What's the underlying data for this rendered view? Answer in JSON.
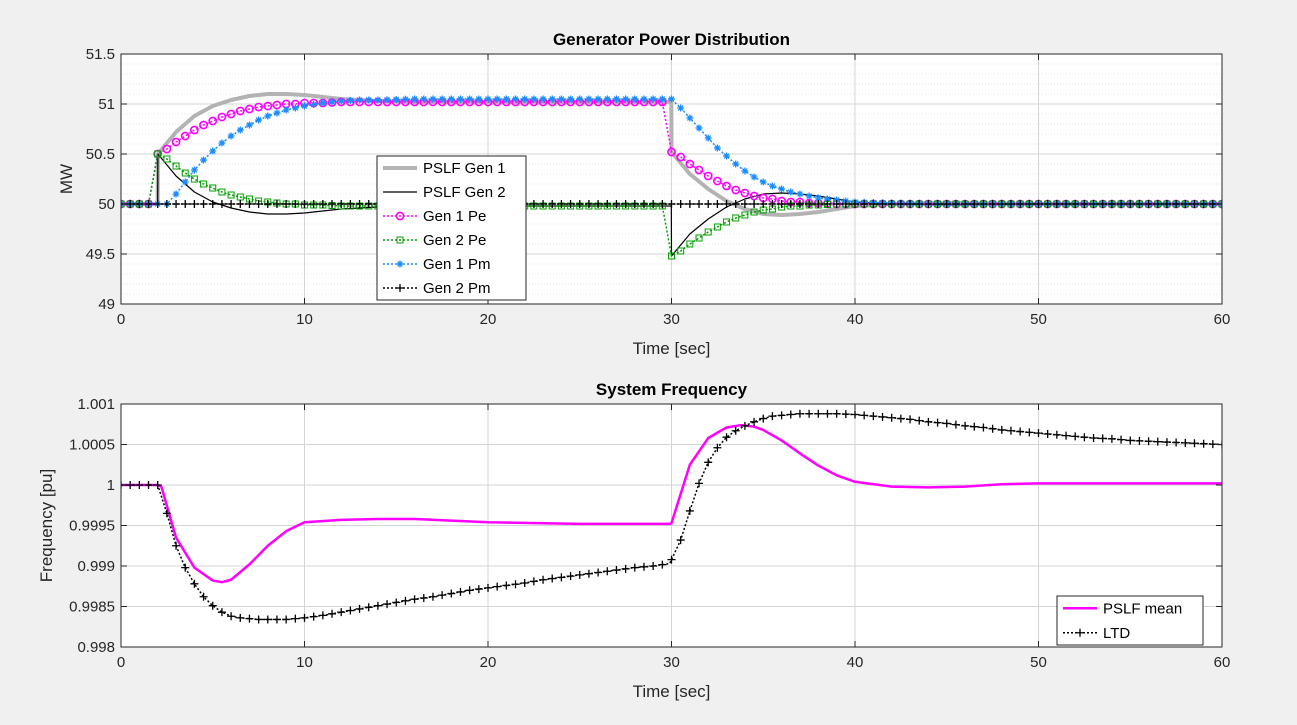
{
  "chart_data": [
    {
      "type": "line",
      "title": "Generator Power Distribution",
      "xlabel": "Time [sec]",
      "ylabel": "MW",
      "xlim": [
        0,
        60
      ],
      "ylim": [
        49,
        51.5
      ],
      "xticks": [
        0,
        10,
        20,
        30,
        40,
        50,
        60
      ],
      "yticks": [
        49,
        49.5,
        50,
        50.5,
        51,
        51.5
      ],
      "xtick_labels": [
        "0",
        "10",
        "20",
        "30",
        "40",
        "50",
        "60"
      ],
      "ytick_labels": [
        "49",
        "49.5",
        "50",
        "50.5",
        "51",
        "51.5"
      ],
      "grid": true,
      "minor_grid": true,
      "legend_position": "center-left",
      "series": [
        {
          "name": "PSLF Gen 1",
          "color": "#b3b3b3",
          "style": "thick-solid",
          "x": [
            0,
            2,
            2.01,
            3,
            4,
            5,
            6,
            7,
            8,
            9,
            10,
            11,
            12,
            14,
            16,
            20,
            25,
            29.99,
            30,
            31,
            32,
            33,
            34,
            35,
            36,
            37,
            38,
            39,
            40,
            42,
            45,
            50,
            55,
            60
          ],
          "y": [
            50,
            50,
            50.5,
            50.72,
            50.88,
            50.98,
            51.04,
            51.08,
            51.1,
            51.1,
            51.09,
            51.07,
            51.05,
            51.03,
            51.02,
            51.02,
            51.02,
            51.02,
            50.52,
            50.3,
            50.15,
            50.03,
            49.95,
            49.9,
            49.89,
            49.9,
            49.92,
            49.95,
            49.98,
            50,
            50.01,
            50,
            50,
            50
          ]
        },
        {
          "name": "PSLF Gen 2",
          "color": "#000000",
          "style": "thin-solid",
          "x": [
            0,
            2,
            2.01,
            3,
            4,
            5,
            6,
            7,
            8,
            9,
            10,
            11,
            12,
            14,
            16,
            20,
            25,
            29.99,
            30,
            31,
            32,
            33,
            34,
            35,
            36,
            37,
            38,
            39,
            40,
            42,
            45,
            50,
            55,
            60
          ],
          "y": [
            50,
            50,
            50.5,
            50.28,
            50.12,
            50.02,
            49.96,
            49.92,
            49.9,
            49.9,
            49.91,
            49.93,
            49.95,
            49.97,
            49.98,
            49.98,
            49.98,
            49.98,
            49.48,
            49.7,
            49.85,
            49.97,
            50.05,
            50.1,
            50.11,
            50.1,
            50.08,
            50.05,
            50.02,
            50,
            49.99,
            50,
            50,
            50
          ]
        },
        {
          "name": "Gen 1 Pe",
          "color": "#ff00ff",
          "style": "dotted-circle",
          "x": [
            0,
            0.5,
            1,
            1.5,
            2,
            2.5,
            3,
            3.5,
            4,
            4.5,
            5,
            5.5,
            6,
            6.5,
            7,
            7.5,
            8,
            8.5,
            9,
            9.5,
            10,
            11,
            12,
            14,
            16,
            18,
            20,
            22,
            24,
            26,
            28,
            29.5,
            30,
            30.5,
            31,
            31.5,
            32,
            32.5,
            33,
            33.5,
            34,
            34.5,
            35,
            35.5,
            36,
            36.5,
            37,
            37.5,
            38,
            39,
            40,
            42,
            45,
            50,
            55,
            60
          ],
          "y": [
            50,
            50,
            50,
            50,
            50.5,
            50.55,
            50.62,
            50.68,
            50.74,
            50.79,
            50.83,
            50.87,
            50.9,
            50.93,
            50.95,
            50.97,
            50.98,
            50.99,
            51,
            51,
            51.01,
            51.01,
            51.02,
            51.02,
            51.02,
            51.02,
            51.02,
            51.02,
            51.02,
            51.02,
            51.02,
            51.02,
            50.52,
            50.47,
            50.4,
            50.34,
            50.28,
            50.23,
            50.18,
            50.14,
            50.11,
            50.08,
            50.06,
            50.05,
            50.03,
            50.02,
            50.02,
            50.01,
            50.01,
            50,
            50,
            50,
            50,
            50,
            50,
            50
          ]
        },
        {
          "name": "Gen 2 Pe",
          "color": "#00a000",
          "style": "dotted-square",
          "x": [
            0,
            0.5,
            1,
            1.5,
            2,
            2.5,
            3,
            3.5,
            4,
            4.5,
            5,
            5.5,
            6,
            6.5,
            7,
            7.5,
            8,
            8.5,
            9,
            9.5,
            10,
            11,
            12,
            14,
            16,
            18,
            20,
            22,
            24,
            26,
            28,
            29.5,
            30,
            30.5,
            31,
            31.5,
            32,
            32.5,
            33,
            33.5,
            34,
            34.5,
            35,
            35.5,
            36,
            36.5,
            37,
            37.5,
            38,
            39,
            40,
            42,
            45,
            50,
            55,
            60
          ],
          "y": [
            50,
            50,
            50,
            50,
            50.5,
            50.45,
            50.38,
            50.31,
            50.25,
            50.2,
            50.16,
            50.12,
            50.09,
            50.07,
            50.05,
            50.03,
            50.02,
            50.01,
            50,
            50,
            49.99,
            49.99,
            49.98,
            49.98,
            49.98,
            49.98,
            49.98,
            49.98,
            49.98,
            49.98,
            49.98,
            49.98,
            49.48,
            49.53,
            49.6,
            49.66,
            49.72,
            49.77,
            49.82,
            49.86,
            49.89,
            49.92,
            49.94,
            49.95,
            49.97,
            49.98,
            49.98,
            49.99,
            49.99,
            50,
            50,
            50,
            50,
            50,
            50,
            50
          ]
        },
        {
          "name": "Gen 1 Pm",
          "color": "#1a8cff",
          "style": "dotted-star",
          "x": [
            0,
            0.5,
            1,
            1.5,
            2,
            2.5,
            3,
            3.5,
            4,
            4.5,
            5,
            5.5,
            6,
            6.5,
            7,
            7.5,
            8,
            8.5,
            9,
            9.5,
            10,
            11,
            12,
            13,
            14,
            16,
            18,
            20,
            22,
            24,
            26,
            28,
            29.5,
            30,
            30.5,
            31,
            31.5,
            32,
            32.5,
            33,
            33.5,
            34,
            34.5,
            35,
            35.5,
            36,
            36.5,
            37,
            37.5,
            38,
            39,
            40,
            42,
            45,
            50,
            55,
            60
          ],
          "y": [
            50,
            50,
            50,
            50,
            50,
            50,
            50.1,
            50.22,
            50.34,
            50.44,
            50.53,
            50.61,
            50.68,
            50.74,
            50.79,
            50.84,
            50.88,
            50.91,
            50.94,
            50.96,
            50.98,
            51.01,
            51.03,
            51.04,
            51.04,
            51.05,
            51.05,
            51.05,
            51.05,
            51.05,
            51.05,
            51.05,
            51.05,
            51.05,
            50.96,
            50.86,
            50.76,
            50.66,
            50.56,
            50.48,
            50.4,
            50.33,
            50.27,
            50.22,
            50.18,
            50.15,
            50.12,
            50.1,
            50.08,
            50.06,
            50.04,
            50.02,
            50.01,
            50,
            50,
            50,
            50
          ]
        },
        {
          "name": "Gen 2 Pm",
          "color": "#000000",
          "style": "dotted-plus",
          "x": [
            0,
            5,
            10,
            15,
            20,
            25,
            30,
            35,
            40,
            45,
            50,
            55,
            60
          ],
          "y": [
            50,
            50,
            50,
            50,
            50,
            50,
            50,
            50,
            50,
            50,
            50,
            50,
            50
          ]
        }
      ]
    },
    {
      "type": "line",
      "title": "System Frequency",
      "xlabel": "Time [sec]",
      "ylabel": "Frequency [pu]",
      "xlim": [
        0,
        60
      ],
      "ylim": [
        0.998,
        1.001
      ],
      "xticks": [
        0,
        10,
        20,
        30,
        40,
        50,
        60
      ],
      "yticks": [
        0.998,
        0.9985,
        0.999,
        0.9995,
        1,
        1.0005,
        1.001
      ],
      "xtick_labels": [
        "0",
        "10",
        "20",
        "30",
        "40",
        "50",
        "60"
      ],
      "ytick_labels": [
        "0.998",
        "0.9985",
        "0.999",
        "0.9995",
        "1",
        "1.0005",
        "1.001"
      ],
      "grid": true,
      "legend_position": "bottom-right",
      "series": [
        {
          "name": "PSLF mean",
          "color": "#ff00ff",
          "style": "thick-solid",
          "x": [
            0,
            2,
            2.2,
            3,
            4,
            5,
            5.5,
            6,
            7,
            8,
            9,
            10,
            12,
            14,
            15,
            16,
            18,
            20,
            25,
            29.9,
            30,
            31,
            32,
            33,
            33.8,
            34.5,
            35,
            36,
            37,
            38,
            39,
            40,
            42,
            44,
            46,
            48,
            50,
            55,
            60
          ],
          "y": [
            1,
            1,
            0.99998,
            0.99935,
            0.99898,
            0.99882,
            0.9988,
            0.99883,
            0.99902,
            0.99925,
            0.99943,
            0.99954,
            0.99957,
            0.99958,
            0.99958,
            0.99958,
            0.99956,
            0.99954,
            0.99952,
            0.99952,
            0.99953,
            1.00025,
            1.00058,
            1.00071,
            1.00074,
            1.00072,
            1.00068,
            1.00055,
            1.00039,
            1.00024,
            1.00012,
            1.00004,
            0.99998,
            0.99997,
            0.99998,
            1.00001,
            1.00002,
            1.00002,
            1.00002
          ]
        },
        {
          "name": "LTD",
          "color": "#000000",
          "style": "dotted-plus",
          "x": [
            0,
            0.5,
            1,
            1.5,
            2,
            2.5,
            3,
            3.5,
            4,
            4.5,
            5,
            5.5,
            6,
            6.5,
            7,
            7.5,
            8,
            8.5,
            9,
            9.5,
            10,
            11,
            12,
            13,
            14,
            15,
            16,
            17,
            18,
            19,
            20,
            21,
            22,
            23,
            24,
            25,
            26,
            27,
            28,
            29,
            29.9,
            30.5,
            31,
            31.5,
            32,
            32.5,
            33,
            33.5,
            34,
            34.5,
            35,
            35.5,
            36,
            36.5,
            37,
            38,
            39,
            40,
            41,
            42,
            43,
            44,
            45,
            46,
            47,
            48,
            49,
            50,
            51,
            52,
            53,
            54,
            55,
            56,
            57,
            58,
            59,
            60
          ],
          "y": [
            1,
            1,
            1,
            1,
            1,
            0.99965,
            0.99925,
            0.99898,
            0.99878,
            0.99862,
            0.99851,
            0.99843,
            0.99838,
            0.99836,
            0.99835,
            0.99834,
            0.99834,
            0.99834,
            0.99834,
            0.99835,
            0.99836,
            0.99839,
            0.99843,
            0.99847,
            0.99851,
            0.99855,
            0.99859,
            0.99862,
            0.99866,
            0.9987,
            0.99873,
            0.99876,
            0.99879,
            0.99883,
            0.99886,
            0.99889,
            0.99892,
            0.99895,
            0.99898,
            0.999,
            0.99903,
            0.99932,
            0.99968,
            1.00002,
            1.00028,
            1.00046,
            1.00059,
            1.00067,
            1.00073,
            1.00078,
            1.00082,
            1.00085,
            1.00086,
            1.00087,
            1.00088,
            1.00088,
            1.00088,
            1.00087,
            1.00085,
            1.00083,
            1.00081,
            1.00078,
            1.00076,
            1.00073,
            1.00071,
            1.00068,
            1.00066,
            1.00064,
            1.00062,
            1.0006,
            1.00058,
            1.00057,
            1.00055,
            1.00054,
            1.00053,
            1.00052,
            1.00051,
            1.0005
          ]
        }
      ]
    }
  ]
}
